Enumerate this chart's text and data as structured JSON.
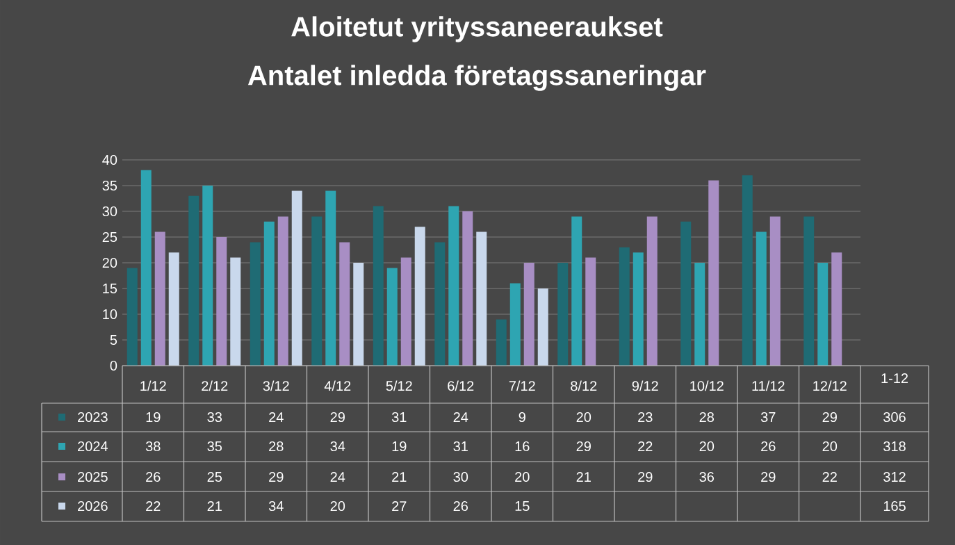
{
  "chart_data": {
    "type": "bar",
    "title": "Aloitetut yrityssaneeraukset",
    "subtitle": "Antalet inledda företagssaneringar",
    "categories": [
      "1/12",
      "2/12",
      "3/12",
      "4/12",
      "5/12",
      "6/12",
      "7/12",
      "8/12",
      "9/12",
      "10/12",
      "11/12",
      "12/12"
    ],
    "series": [
      {
        "name": "2023",
        "color": "#1f6b74",
        "values": [
          19,
          33,
          24,
          29,
          31,
          24,
          9,
          20,
          23,
          28,
          37,
          29
        ]
      },
      {
        "name": "2024",
        "color": "#2ea5b2",
        "values": [
          38,
          35,
          28,
          34,
          19,
          31,
          16,
          29,
          22,
          20,
          26,
          20
        ]
      },
      {
        "name": "2025",
        "color": "#a88ec4",
        "values": [
          26,
          25,
          29,
          24,
          21,
          30,
          20,
          21,
          29,
          36,
          29,
          22
        ]
      },
      {
        "name": "2026",
        "color": "#c9d8ec",
        "values": [
          22,
          21,
          34,
          20,
          27,
          26,
          15,
          null,
          null,
          null,
          null,
          null
        ]
      }
    ],
    "ylim": [
      0,
      40
    ],
    "yticks": [
      0,
      5,
      10,
      15,
      20,
      25,
      30,
      35,
      40
    ],
    "grid": "y",
    "legend": "bottom",
    "data_labels": true,
    "annotations": [
      "1-12",
      "306",
      "318",
      "312",
      "165"
    ]
  }
}
